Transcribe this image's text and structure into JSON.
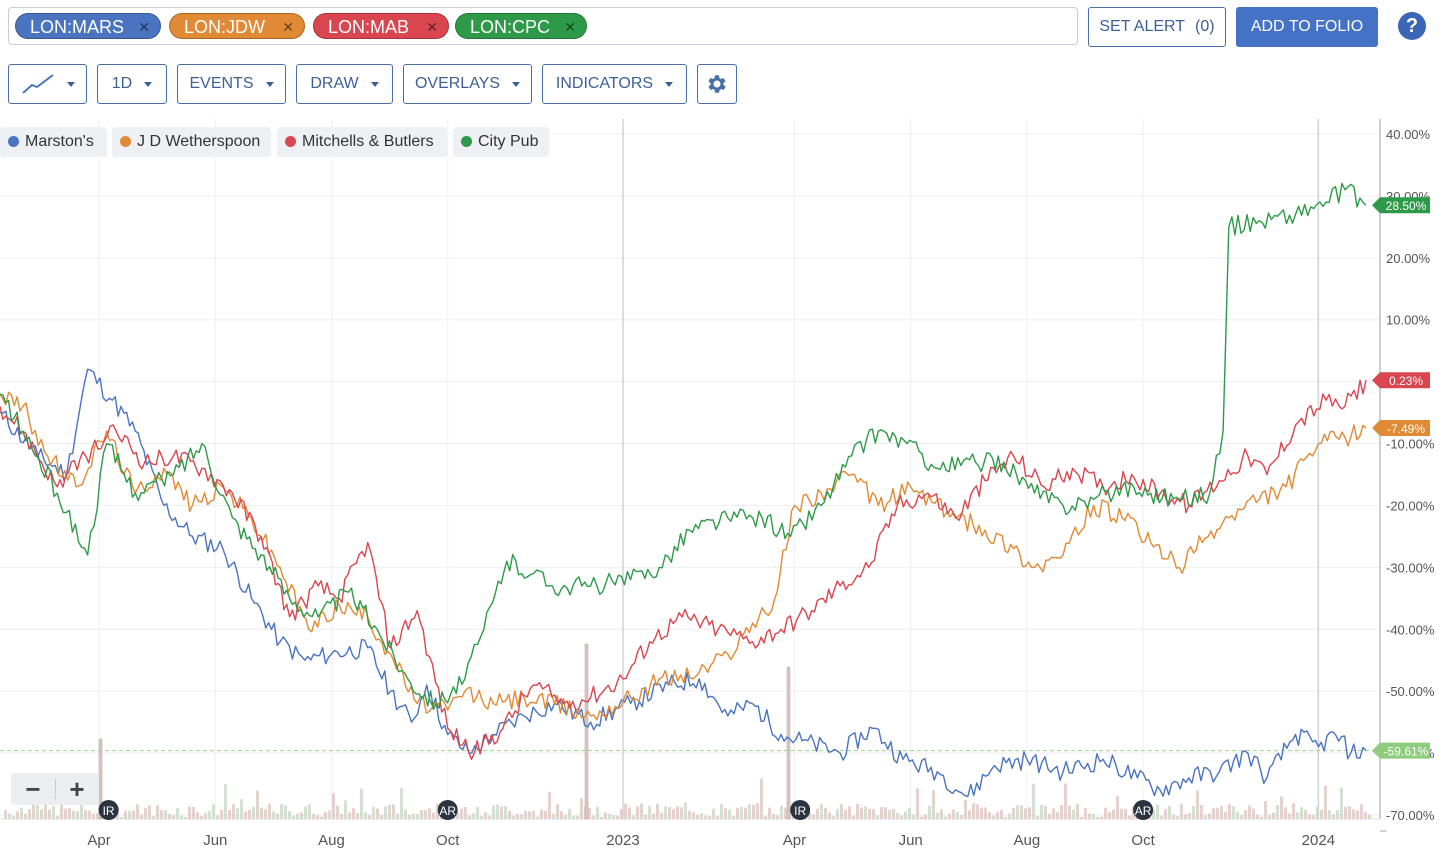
{
  "tickers": [
    {
      "label": "LON:MARS",
      "color": "#4a73c0"
    },
    {
      "label": "LON:JDW",
      "color": "#e08a35"
    },
    {
      "label": "LON:MAB",
      "color": "#d9464f"
    },
    {
      "label": "LON:CPC",
      "color": "#2e9a49"
    }
  ],
  "header": {
    "set_alert": "SET ALERT",
    "alert_count": "(0)",
    "add_to_folio": "ADD TO FOLIO",
    "help": "?"
  },
  "toolbar": {
    "period": "1D",
    "events": "EVENTS",
    "draw": "DRAW",
    "overlays": "OVERLAYS",
    "indicators": "INDICATORS"
  },
  "icons": {
    "chart_type": "line-chart-icon",
    "settings": "gear-icon",
    "remove_ticker": "close-icon"
  },
  "zoom": {
    "minus": "−",
    "plus": "+"
  },
  "legend": [
    {
      "name": "Marston's",
      "color": "#4a73c0"
    },
    {
      "name": "J D Wetherspoon",
      "color": "#e08a35"
    },
    {
      "name": "Mitchells & Butlers",
      "color": "#d9464f"
    },
    {
      "name": "City Pub",
      "color": "#2e9a49"
    }
  ],
  "chart_data": {
    "type": "line",
    "ylim": [
      -70,
      40
    ],
    "yticks": [
      "40.00%",
      "30.00%",
      "20.00%",
      "10.00%",
      "0.00%",
      "-10.00%",
      "-20.00%",
      "-30.00%",
      "-40.00%",
      "-50.00%",
      "-60.00%",
      "-70.00%"
    ],
    "xticks": [
      "Apr",
      "Jun",
      "Aug",
      "Oct",
      "2023",
      "Apr",
      "Jun",
      "Aug",
      "Oct",
      "2024"
    ],
    "x_start": "2022-02-08",
    "x_end": "2024-01-26",
    "events": [
      {
        "label": "IR",
        "date": "2022-04-06"
      },
      {
        "label": "AR",
        "date": "2022-10-01"
      },
      {
        "label": "IR",
        "date": "2023-04-04"
      },
      {
        "label": "AR",
        "date": "2023-10-01"
      }
    ],
    "series": [
      {
        "name": "Marston's",
        "color": "#4a73c0",
        "last": "-59.61%",
        "values": [
          [
            "2022-02-08",
            -5
          ],
          [
            "2022-02-28",
            -12
          ],
          [
            "2022-03-15",
            -15
          ],
          [
            "2022-03-26",
            2
          ],
          [
            "2022-04-08",
            -3
          ],
          [
            "2022-04-20",
            -8
          ],
          [
            "2022-05-05",
            -20
          ],
          [
            "2022-05-20",
            -25
          ],
          [
            "2022-06-05",
            -27
          ],
          [
            "2022-06-20",
            -35
          ],
          [
            "2022-07-05",
            -42
          ],
          [
            "2022-07-18",
            -45
          ],
          [
            "2022-08-01",
            -44
          ],
          [
            "2022-08-20",
            -43
          ],
          [
            "2022-09-01",
            -50
          ],
          [
            "2022-09-12",
            -55
          ],
          [
            "2022-09-20",
            -49
          ],
          [
            "2022-10-01",
            -57
          ],
          [
            "2022-10-12",
            -60
          ],
          [
            "2022-10-25",
            -57
          ],
          [
            "2022-11-10",
            -54
          ],
          [
            "2022-11-26",
            -52
          ],
          [
            "2022-12-15",
            -55
          ],
          [
            "2023-01-05",
            -52
          ],
          [
            "2023-01-25",
            -49
          ],
          [
            "2023-02-10",
            -48
          ],
          [
            "2023-02-25",
            -54
          ],
          [
            "2023-03-10",
            -52
          ],
          [
            "2023-03-25",
            -57
          ],
          [
            "2023-04-05",
            -58
          ],
          [
            "2023-04-25",
            -60
          ],
          [
            "2023-05-12",
            -56
          ],
          [
            "2023-05-28",
            -61
          ],
          [
            "2023-06-15",
            -63
          ],
          [
            "2023-07-01",
            -67
          ],
          [
            "2023-07-15",
            -62
          ],
          [
            "2023-08-01",
            -61
          ],
          [
            "2023-08-20",
            -63
          ],
          [
            "2023-09-10",
            -61
          ],
          [
            "2023-09-28",
            -64
          ],
          [
            "2023-10-10",
            -66
          ],
          [
            "2023-10-25",
            -64
          ],
          [
            "2023-11-10",
            -63
          ],
          [
            "2023-11-25",
            -60
          ],
          [
            "2023-12-05",
            -64
          ],
          [
            "2023-12-20",
            -57
          ],
          [
            "2024-01-01",
            -59
          ],
          [
            "2024-01-10",
            -57
          ],
          [
            "2024-01-18",
            -60
          ],
          [
            "2024-01-26",
            -59.61
          ]
        ]
      },
      {
        "name": "J D Wetherspoon",
        "color": "#e08a35",
        "last": "-7.49%",
        "values": [
          [
            "2022-02-08",
            -2
          ],
          [
            "2022-02-20",
            -4
          ],
          [
            "2022-03-05",
            -12
          ],
          [
            "2022-03-20",
            -17
          ],
          [
            "2022-04-05",
            -8
          ],
          [
            "2022-04-20",
            -18
          ],
          [
            "2022-05-05",
            -14
          ],
          [
            "2022-05-20",
            -20
          ],
          [
            "2022-06-05",
            -17
          ],
          [
            "2022-06-20",
            -22
          ],
          [
            "2022-07-05",
            -30
          ],
          [
            "2022-07-20",
            -40
          ],
          [
            "2022-08-05",
            -36
          ],
          [
            "2022-08-20",
            -38
          ],
          [
            "2022-09-01",
            -44
          ],
          [
            "2022-09-15",
            -52
          ],
          [
            "2022-10-01",
            -53
          ],
          [
            "2022-10-10",
            -50
          ],
          [
            "2022-10-25",
            -52
          ],
          [
            "2022-11-10",
            -51
          ],
          [
            "2022-11-26",
            -52
          ],
          [
            "2022-12-15",
            -54
          ],
          [
            "2023-01-05",
            -51
          ],
          [
            "2023-01-20",
            -48
          ],
          [
            "2023-02-10",
            -47
          ],
          [
            "2023-02-25",
            -44
          ],
          [
            "2023-03-10",
            -39
          ],
          [
            "2023-03-20",
            -37
          ],
          [
            "2023-04-01",
            -20
          ],
          [
            "2023-04-15",
            -18
          ],
          [
            "2023-05-01",
            -15
          ],
          [
            "2023-05-15",
            -20
          ],
          [
            "2023-06-01",
            -17
          ],
          [
            "2023-06-20",
            -21
          ],
          [
            "2023-07-10",
            -24
          ],
          [
            "2023-07-25",
            -27
          ],
          [
            "2023-08-05",
            -30
          ],
          [
            "2023-08-20",
            -28
          ],
          [
            "2023-09-05",
            -20
          ],
          [
            "2023-09-20",
            -22
          ],
          [
            "2023-10-05",
            -26
          ],
          [
            "2023-10-20",
            -30
          ],
          [
            "2023-11-01",
            -26
          ],
          [
            "2023-11-15",
            -22
          ],
          [
            "2023-12-01",
            -19
          ],
          [
            "2023-12-15",
            -17
          ],
          [
            "2024-01-01",
            -10
          ],
          [
            "2024-01-15",
            -9
          ],
          [
            "2024-01-26",
            -7.49
          ]
        ]
      },
      {
        "name": "Mitchells & Butlers",
        "color": "#d9464f",
        "last": "0.23%",
        "values": [
          [
            "2022-02-08",
            -4
          ],
          [
            "2022-02-20",
            -8
          ],
          [
            "2022-03-10",
            -17
          ],
          [
            "2022-03-25",
            -12
          ],
          [
            "2022-04-10",
            -8
          ],
          [
            "2022-04-25",
            -13
          ],
          [
            "2022-05-10",
            -12
          ],
          [
            "2022-05-25",
            -14
          ],
          [
            "2022-06-10",
            -18
          ],
          [
            "2022-06-25",
            -25
          ],
          [
            "2022-07-10",
            -38
          ],
          [
            "2022-07-25",
            -33
          ],
          [
            "2022-08-05",
            -35
          ],
          [
            "2022-08-20",
            -26
          ],
          [
            "2022-09-01",
            -43
          ],
          [
            "2022-09-15",
            -37
          ],
          [
            "2022-10-01",
            -56
          ],
          [
            "2022-10-15",
            -60
          ],
          [
            "2022-10-30",
            -56
          ],
          [
            "2022-11-15",
            -49
          ],
          [
            "2022-12-01",
            -52
          ],
          [
            "2022-12-15",
            -51
          ],
          [
            "2023-01-01",
            -48
          ],
          [
            "2023-01-15",
            -42
          ],
          [
            "2023-02-01",
            -38
          ],
          [
            "2023-02-20",
            -40
          ],
          [
            "2023-03-10",
            -42
          ],
          [
            "2023-03-25",
            -40
          ],
          [
            "2023-04-10",
            -37
          ],
          [
            "2023-04-25",
            -33
          ],
          [
            "2023-05-10",
            -30
          ],
          [
            "2023-05-25",
            -20
          ],
          [
            "2023-06-10",
            -18
          ],
          [
            "2023-06-25",
            -22
          ],
          [
            "2023-07-10",
            -16
          ],
          [
            "2023-07-25",
            -12
          ],
          [
            "2023-08-10",
            -17
          ],
          [
            "2023-08-25",
            -14
          ],
          [
            "2023-09-10",
            -17
          ],
          [
            "2023-09-25",
            -15
          ],
          [
            "2023-10-10",
            -18
          ],
          [
            "2023-10-25",
            -20
          ],
          [
            "2023-11-10",
            -16
          ],
          [
            "2023-11-25",
            -12
          ],
          [
            "2023-12-05",
            -15
          ],
          [
            "2023-12-20",
            -7
          ],
          [
            "2024-01-05",
            -3
          ],
          [
            "2024-01-15",
            -4
          ],
          [
            "2024-01-26",
            0.23
          ]
        ]
      },
      {
        "name": "City Pub",
        "color": "#2e9a49",
        "last": "28.50%",
        "values": [
          [
            "2022-02-08",
            -2
          ],
          [
            "2022-02-20",
            -8
          ],
          [
            "2022-03-10",
            -18
          ],
          [
            "2022-03-26",
            -28
          ],
          [
            "2022-04-05",
            -10
          ],
          [
            "2022-04-20",
            -18
          ],
          [
            "2022-05-10",
            -15
          ],
          [
            "2022-05-25",
            -10
          ],
          [
            "2022-06-10",
            -22
          ],
          [
            "2022-06-25",
            -28
          ],
          [
            "2022-07-10",
            -35
          ],
          [
            "2022-07-25",
            -38
          ],
          [
            "2022-08-10",
            -34
          ],
          [
            "2022-08-25",
            -40
          ],
          [
            "2022-09-10",
            -48
          ],
          [
            "2022-09-25",
            -52
          ],
          [
            "2022-10-10",
            -48
          ],
          [
            "2022-10-20",
            -40
          ],
          [
            "2022-11-01",
            -29
          ],
          [
            "2022-11-15",
            -31
          ],
          [
            "2022-11-25",
            -33
          ],
          [
            "2022-12-15",
            -33
          ],
          [
            "2023-01-05",
            -32
          ],
          [
            "2023-01-20",
            -30
          ],
          [
            "2023-02-05",
            -24
          ],
          [
            "2023-02-25",
            -22
          ],
          [
            "2023-03-15",
            -22
          ],
          [
            "2023-03-30",
            -25
          ],
          [
            "2023-04-15",
            -20
          ],
          [
            "2023-05-01",
            -12
          ],
          [
            "2023-05-15",
            -8
          ],
          [
            "2023-05-30",
            -10
          ],
          [
            "2023-06-15",
            -14
          ],
          [
            "2023-07-05",
            -13
          ],
          [
            "2023-07-20",
            -13
          ],
          [
            "2023-08-05",
            -18
          ],
          [
            "2023-08-20",
            -20
          ],
          [
            "2023-09-05",
            -19
          ],
          [
            "2023-09-20",
            -17
          ],
          [
            "2023-10-05",
            -18
          ],
          [
            "2023-10-20",
            -19
          ],
          [
            "2023-11-05",
            -18
          ],
          [
            "2023-11-12",
            -8
          ],
          [
            "2023-11-15",
            25
          ],
          [
            "2023-12-01",
            26
          ],
          [
            "2023-12-20",
            27
          ],
          [
            "2024-01-05",
            29
          ],
          [
            "2024-01-15",
            31
          ],
          [
            "2024-01-26",
            28.5
          ]
        ]
      }
    ]
  }
}
